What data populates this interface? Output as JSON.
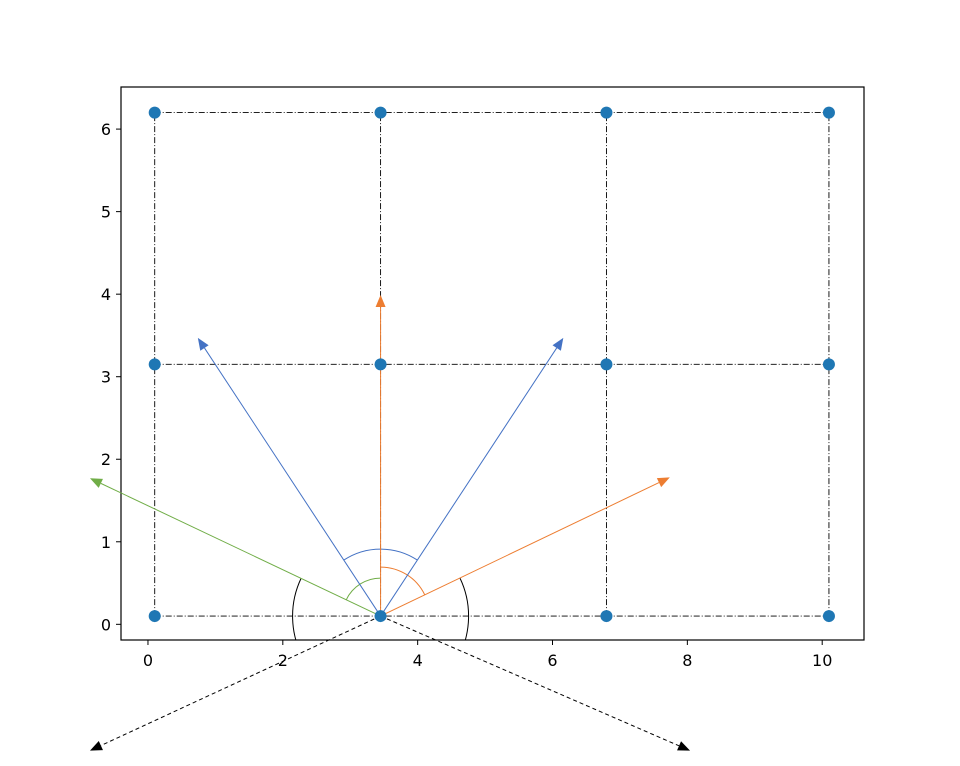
{
  "chart_data": {
    "type": "scatter",
    "x": [
      0.1,
      3.45,
      6.8,
      10.1,
      0.1,
      3.45,
      6.8,
      10.1,
      0.1,
      3.45,
      6.8,
      10.1
    ],
    "y": [
      0.1,
      0.1,
      0.1,
      0.1,
      3.15,
      3.15,
      3.15,
      3.15,
      6.2,
      6.2,
      6.2,
      6.2
    ],
    "color": "#1f77b4",
    "guide_color": "#000000",
    "xlim": [
      -0.4,
      10.62
    ],
    "ylim": [
      -0.19,
      6.51
    ],
    "xticks": [
      0,
      2,
      4,
      6,
      8,
      10
    ],
    "yticks": [
      0,
      1,
      2,
      3,
      4,
      5,
      6
    ],
    "arrows": [
      {
        "color": "#4472c4",
        "dashed": false,
        "x": [
          3.45,
          0.74
        ],
        "y": [
          0.1,
          3.47
        ]
      },
      {
        "color": "#4472c4",
        "dashed": false,
        "x": [
          3.45,
          6.16
        ],
        "y": [
          0.1,
          3.47
        ]
      },
      {
        "color": "#ed7d31",
        "dashed": false,
        "x": [
          3.45,
          3.45
        ],
        "y": [
          0.1,
          3.99
        ]
      },
      {
        "color": "#ed7d31",
        "dashed": false,
        "x": [
          3.45,
          7.74
        ],
        "y": [
          0.1,
          1.78
        ]
      },
      {
        "color": "#70ad47",
        "dashed": false,
        "x": [
          3.45,
          -0.86
        ],
        "y": [
          0.1,
          1.77
        ]
      },
      {
        "color": "#000000",
        "dashed": true,
        "x": [
          3.45,
          -0.86
        ],
        "y": [
          0.1,
          -1.53
        ]
      },
      {
        "color": "#000000",
        "dashed": true,
        "x": [
          3.45,
          8.04
        ],
        "y": [
          0.1,
          -1.53
        ]
      }
    ],
    "arcs": [
      {
        "color": "#4472c4"
      },
      {
        "color": "#ed7d31"
      },
      {
        "color": "#70ad47"
      },
      {
        "color": "#000000"
      }
    ]
  }
}
